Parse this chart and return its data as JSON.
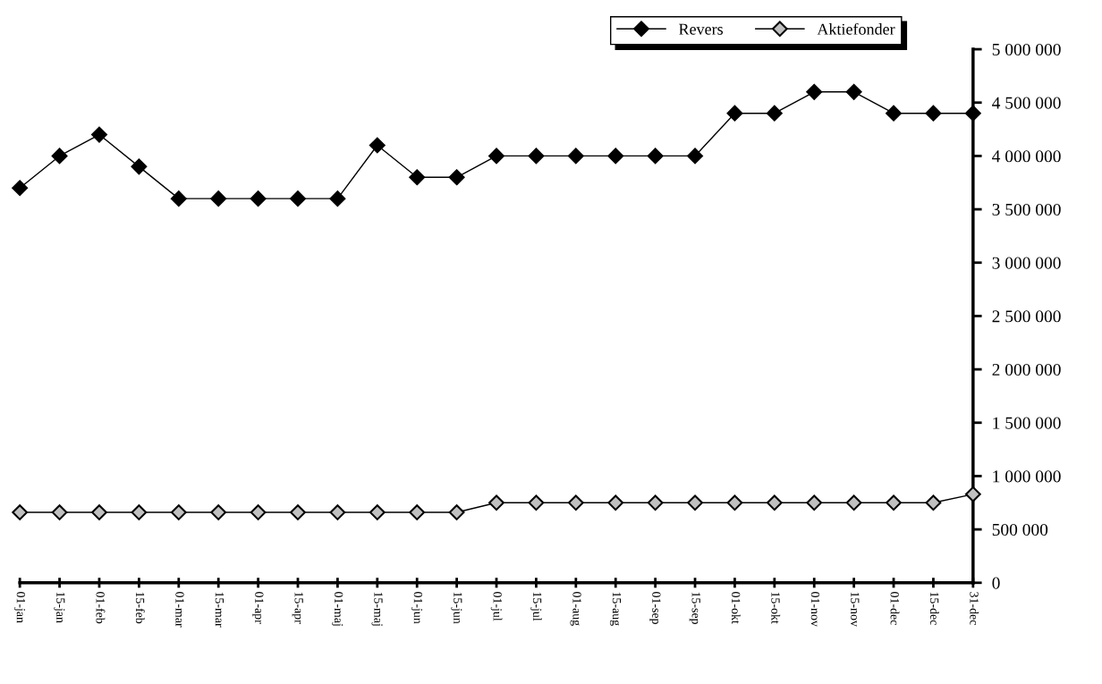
{
  "chart_data": {
    "type": "line",
    "categories": [
      "01-jan",
      "15-jan",
      "01-feb",
      "15-feb",
      "01-mar",
      "15-mar",
      "01-apr",
      "15-apr",
      "01-maj",
      "15-maj",
      "01-jun",
      "15-jun",
      "01-jul",
      "15-jul",
      "01-aug",
      "15-aug",
      "01-sep",
      "15-sep",
      "01-okt",
      "15-okt",
      "01-nov",
      "15-nov",
      "01-dec",
      "15-dec",
      "31-dec"
    ],
    "series": [
      {
        "name": "Revers",
        "color": "#000000",
        "values": [
          3700000,
          4000000,
          4200000,
          3900000,
          3600000,
          3600000,
          3600000,
          3600000,
          3600000,
          4100000,
          3800000,
          3800000,
          4000000,
          4000000,
          4000000,
          4000000,
          4000000,
          4000000,
          4400000,
          4400000,
          4600000,
          4600000,
          4400000,
          4400000,
          4400000
        ]
      },
      {
        "name": "Aktiefonder",
        "color": "#c0c0c0",
        "values": [
          660000,
          660000,
          660000,
          660000,
          660000,
          660000,
          660000,
          660000,
          660000,
          660000,
          660000,
          660000,
          750000,
          750000,
          750000,
          750000,
          750000,
          750000,
          750000,
          750000,
          750000,
          750000,
          750000,
          750000,
          830000
        ]
      }
    ],
    "ylim": [
      0,
      5000000
    ],
    "yticks": [
      {
        "value": 0,
        "label": "0"
      },
      {
        "value": 500000,
        "label": "500 000"
      },
      {
        "value": 1000000,
        "label": "1 000 000"
      },
      {
        "value": 1500000,
        "label": "1 500 000"
      },
      {
        "value": 2000000,
        "label": "2 000 000"
      },
      {
        "value": 2500000,
        "label": "2 500 000"
      },
      {
        "value": 3000000,
        "label": "3 000 000"
      },
      {
        "value": 3500000,
        "label": "3 500 000"
      },
      {
        "value": 4000000,
        "label": "4 000 000"
      },
      {
        "value": 4500000,
        "label": "4 500 000"
      },
      {
        "value": 5000000,
        "label": "5 000 000"
      }
    ],
    "grid": false,
    "legend": "top right",
    "marker": "diamond",
    "line_style": "solid"
  }
}
